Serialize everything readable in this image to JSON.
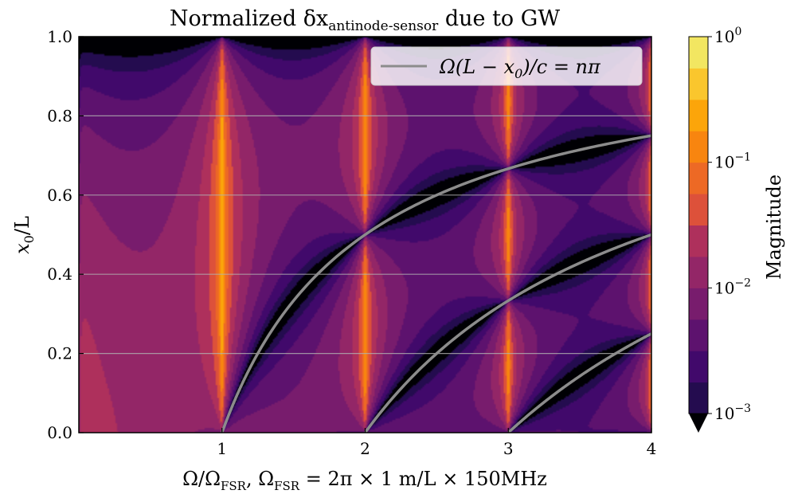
{
  "chart_data": {
    "type": "heatmap",
    "title": "Normalized δx",
    "title_subscript": "antinode-sensor",
    "title_suffix": " due to GW",
    "xlabel": "Ω/Ω",
    "xlabel_sub": "FSR",
    "xlabel_rest": ",    Ω",
    "xlabel_sub2": "FSR",
    "xlabel_tail": " = 2π × 1 m/L × 150MHz",
    "ylabel": "x",
    "ylabel_sub": "0",
    "ylabel_tail": "/L",
    "xlim": [
      0,
      4
    ],
    "ylim": [
      0,
      1
    ],
    "x_ticks": [
      "1",
      "2",
      "3",
      "4"
    ],
    "x_tick_values": [
      1,
      2,
      3,
      4
    ],
    "y_ticks": [
      "0.0",
      "0.2",
      "0.4",
      "0.6",
      "0.8",
      "1.0"
    ],
    "y_tick_values": [
      0.0,
      0.2,
      0.4,
      0.6,
      0.8,
      1.0
    ],
    "grid_y": [
      0.2,
      0.4,
      0.6,
      0.8
    ],
    "colorbar": {
      "label": "Magnitude",
      "scale": "log",
      "ticks": [
        "10",
        "10",
        "10",
        "10"
      ],
      "tick_exponents": [
        "0",
        "−1",
        "−2",
        "−3"
      ],
      "tick_values": [
        1,
        0.1,
        0.01,
        0.001
      ],
      "levels": 12,
      "extend": "min",
      "colormap": "inferno",
      "colors": [
        "#000004",
        "#0b0724",
        "#240c4f",
        "#41096b",
        "#5d126e",
        "#781c6d",
        "#932667",
        "#ae305c",
        "#c73e4c",
        "#dd513a",
        "#ed6925",
        "#f8850f",
        "#fca50a",
        "#fac62d",
        "#f2e661",
        "#fcffa4"
      ]
    },
    "legend": {
      "label": "Ω(L − x",
      "label_sub": "0",
      "label_tail": ")/c = nπ",
      "location": "upper right"
    },
    "curves": [
      {
        "name": "n=1",
        "n": 1,
        "x_range": [
          1,
          4
        ]
      },
      {
        "name": "n=2",
        "n": 2,
        "x_range": [
          2,
          4
        ]
      },
      {
        "name": "n=3",
        "n": 3,
        "x_range": [
          3,
          4
        ]
      }
    ],
    "curve_color": "#8c8c8c",
    "description_model": "magnitude ∝ |sin(π x (1 − x0/L))| / |sin(π x)|"
  }
}
